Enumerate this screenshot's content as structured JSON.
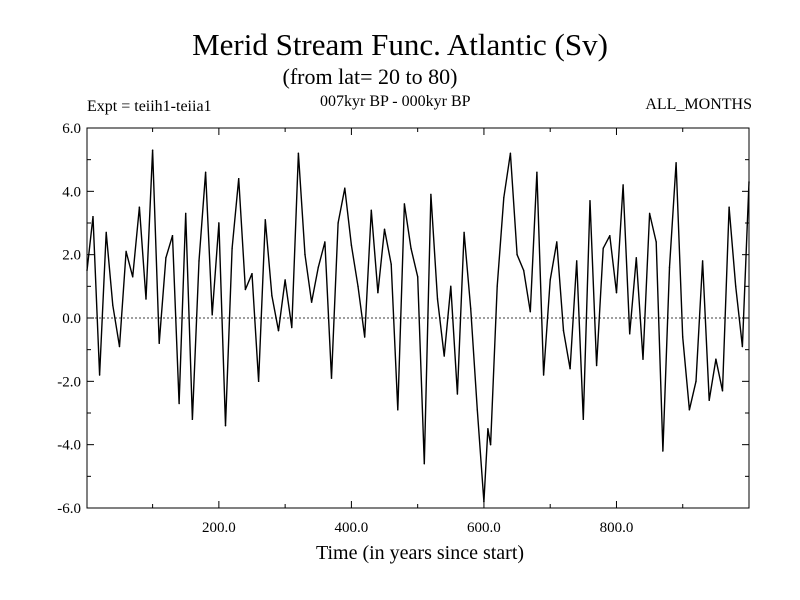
{
  "header": {
    "title": "Merid Stream Func. Atlantic (Sv)",
    "subtitle": "(from lat= 20 to 80)",
    "expt": "Expt = teiih1-teiia1",
    "period": "007kyr BP - 000kyr BP",
    "months": "ALL_MONTHS"
  },
  "chart_data": {
    "type": "line",
    "xlabel": "Time (in years since start)",
    "ylabel": "",
    "xlim": [
      1,
      1000
    ],
    "ylim": [
      -6.0,
      6.0
    ],
    "grid": false,
    "zero_line": true,
    "x_ticks": [
      {
        "value": 200,
        "label": "200.0"
      },
      {
        "value": 400,
        "label": "400.0"
      },
      {
        "value": 600,
        "label": "600.0"
      },
      {
        "value": 800,
        "label": "800.0"
      }
    ],
    "y_ticks": [
      {
        "value": 6,
        "label": "6.0"
      },
      {
        "value": 4,
        "label": "4.0"
      },
      {
        "value": 2,
        "label": "2.0"
      },
      {
        "value": 0,
        "label": "0.0"
      },
      {
        "value": -2,
        "label": "-2.0"
      },
      {
        "value": -4,
        "label": "-4.0"
      },
      {
        "value": -6,
        "label": "-6.0"
      }
    ],
    "series": [
      {
        "x": [
          1,
          10,
          20,
          30,
          40,
          50,
          60,
          70,
          80,
          90,
          100,
          110,
          120,
          130,
          140,
          150,
          160,
          170,
          180,
          190,
          200,
          210,
          220,
          230,
          240,
          250,
          260,
          270,
          280,
          290,
          300,
          310,
          320,
          330,
          340,
          350,
          360,
          370,
          380,
          390,
          400,
          410,
          420,
          430,
          440,
          450,
          460,
          470,
          480,
          490,
          500,
          510,
          520,
          530,
          540,
          550,
          560,
          570,
          580,
          590,
          600,
          606,
          610,
          620,
          630,
          640,
          650,
          660,
          670,
          680,
          690,
          700,
          710,
          720,
          730,
          740,
          750,
          760,
          770,
          780,
          790,
          800,
          810,
          820,
          830,
          840,
          850,
          860,
          870,
          880,
          890,
          900,
          910,
          920,
          930,
          940,
          950,
          960,
          970,
          980,
          990,
          1000
        ],
        "values": [
          1.5,
          3.2,
          -1.8,
          2.7,
          0.4,
          -0.9,
          2.1,
          1.3,
          3.5,
          0.6,
          5.3,
          -0.8,
          1.9,
          2.6,
          -2.7,
          3.3,
          -3.2,
          1.8,
          4.6,
          0.1,
          3.0,
          -3.4,
          2.2,
          4.4,
          0.9,
          1.4,
          -2.0,
          3.1,
          0.7,
          -0.4,
          1.2,
          -0.3,
          5.2,
          2.0,
          0.5,
          1.6,
          2.4,
          -1.9,
          3.0,
          4.1,
          2.3,
          1.0,
          -0.6,
          3.4,
          0.8,
          2.8,
          1.7,
          -2.9,
          3.6,
          2.2,
          1.3,
          -4.6,
          3.9,
          0.6,
          -1.2,
          1.0,
          -2.4,
          2.7,
          0.3,
          -2.9,
          -5.8,
          -3.5,
          -4.0,
          1.0,
          3.8,
          5.2,
          2.0,
          1.5,
          0.2,
          4.6,
          -1.8,
          1.2,
          2.4,
          -0.4,
          -1.6,
          1.8,
          -3.2,
          3.7,
          -1.5,
          2.2,
          2.6,
          0.8,
          4.2,
          -0.5,
          1.9,
          -1.3,
          3.3,
          2.4,
          -4.2,
          1.6,
          4.9,
          -0.6,
          -2.9,
          -2.0,
          1.8,
          -2.6,
          -1.3,
          -2.3,
          3.5,
          1.0,
          -0.9,
          4.3
        ]
      }
    ]
  }
}
